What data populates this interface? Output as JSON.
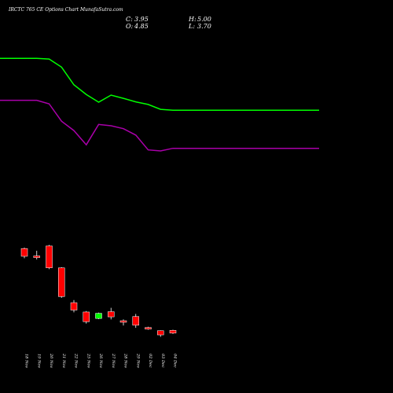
{
  "chart_data": {
    "type": "candlestick",
    "title": "IRCTC 765 CE Options Chart MunafaSutra.com",
    "summary": {
      "close_label": "C:",
      "close": "3.95",
      "open_label": "O:",
      "open": "4.85",
      "high_label": "H:",
      "high": "5.00",
      "low_label": "L:",
      "low": "3.70"
    },
    "x_labels": [
      "18 Nov",
      "19 Nov",
      "20 Nov",
      "21 Nov",
      "22 Nov",
      "25 Nov",
      "26 Nov",
      "27 Nov",
      "28 Nov",
      "29 Nov",
      "02 Dec",
      "03 Dec",
      "04 Dec"
    ],
    "candles": [
      {
        "o": 30.2,
        "h": 30.5,
        "l": 27.2,
        "c": 27.8
      },
      {
        "o": 27.9,
        "h": 29.5,
        "l": 26.8,
        "c": 27.4
      },
      {
        "o": 31.0,
        "h": 31.3,
        "l": 23.8,
        "c": 24.2
      },
      {
        "o": 24.2,
        "h": 24.4,
        "l": 14.9,
        "c": 15.3
      },
      {
        "o": 13.4,
        "h": 14.2,
        "l": 10.4,
        "c": 11.1
      },
      {
        "o": 10.5,
        "h": 10.8,
        "l": 6.9,
        "c": 7.5
      },
      {
        "o": 8.5,
        "h": 10.3,
        "l": 8.3,
        "c": 10.1
      },
      {
        "o": 10.6,
        "h": 11.8,
        "l": 8.2,
        "c": 9.0
      },
      {
        "o": 7.8,
        "h": 8.2,
        "l": 6.3,
        "c": 7.5
      },
      {
        "o": 9.1,
        "h": 9.9,
        "l": 5.6,
        "c": 6.4
      },
      {
        "o": 5.7,
        "h": 5.9,
        "l": 5.0,
        "c": 5.2
      },
      {
        "o": 4.7,
        "h": 4.8,
        "l": 2.8,
        "c": 3.4
      },
      {
        "o": 4.8,
        "h": 5.0,
        "l": 3.7,
        "c": 3.95
      }
    ],
    "upper_band": [
      89.2,
      89.2,
      89.0,
      86.5,
      81.0,
      78.0,
      75.6,
      77.8,
      76.8,
      75.7,
      74.9,
      73.4,
      73.1
    ],
    "lower_band": [
      76.2,
      76.2,
      75.1,
      69.7,
      66.8,
      62.4,
      68.7,
      68.3,
      67.4,
      65.4,
      60.8,
      60.5,
      61.3
    ],
    "colors": {
      "background": "#000000",
      "bearish": "#ff0000",
      "bullish": "#00ff00",
      "upper_band": "#00ff00",
      "lower_band": "#aa00aa",
      "text": "#ffffff",
      "wick": "#ffffff"
    }
  }
}
